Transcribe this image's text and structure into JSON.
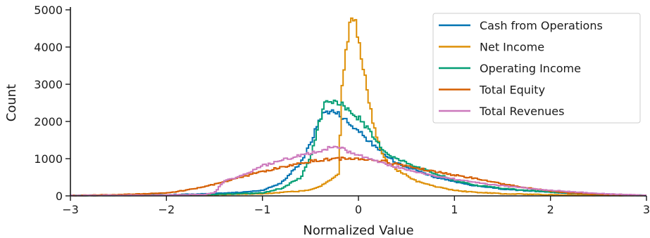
{
  "chart_data": {
    "type": "line",
    "style": "step-histogram",
    "title": "",
    "xlabel": "Normalized Value",
    "ylabel": "Count",
    "xlim": [
      -3,
      3
    ],
    "ylim": [
      0,
      5000
    ],
    "x_ticks": [
      -3,
      -2,
      -1,
      0,
      1,
      2,
      3
    ],
    "x_tick_labels": [
      "−3",
      "−2",
      "−1",
      "0",
      "1",
      "2",
      "3"
    ],
    "y_ticks": [
      0,
      1000,
      2000,
      3000,
      4000,
      5000
    ],
    "y_tick_labels": [
      "0",
      "1000",
      "2000",
      "3000",
      "4000",
      "5000"
    ],
    "grid": false,
    "legend_position": "top-right",
    "series": [
      {
        "name": "Cash from Operations",
        "color": "#0173b2",
        "x": [
          -3.0,
          -2.5,
          -2.0,
          -1.5,
          -1.2,
          -1.0,
          -0.8,
          -0.6,
          -0.5,
          -0.4,
          -0.35,
          -0.3,
          -0.25,
          -0.2,
          -0.15,
          -0.1,
          -0.05,
          0.0,
          0.1,
          0.2,
          0.3,
          0.4,
          0.5,
          0.6,
          0.8,
          1.0,
          1.2,
          1.5,
          2.0,
          2.5,
          3.0
        ],
        "y": [
          10,
          20,
          30,
          60,
          100,
          150,
          350,
          900,
          1400,
          2100,
          2250,
          2300,
          2250,
          2200,
          2100,
          1950,
          1850,
          1750,
          1500,
          1250,
          1050,
          900,
          800,
          700,
          500,
          380,
          280,
          180,
          100,
          40,
          10
        ]
      },
      {
        "name": "Net Income",
        "color": "#de8f05",
        "x": [
          -3.0,
          -2.5,
          -2.0,
          -1.5,
          -1.0,
          -0.8,
          -0.6,
          -0.5,
          -0.4,
          -0.3,
          -0.2,
          -0.18,
          -0.15,
          -0.12,
          -0.1,
          -0.08,
          -0.05,
          -0.03,
          0.0,
          0.05,
          0.1,
          0.15,
          0.2,
          0.25,
          0.3,
          0.4,
          0.5,
          0.6,
          0.8,
          1.0,
          1.2,
          1.5,
          2.0,
          2.5,
          3.0
        ],
        "y": [
          10,
          15,
          20,
          30,
          60,
          90,
          130,
          170,
          260,
          420,
          600,
          2600,
          3400,
          4000,
          4500,
          4850,
          4800,
          4600,
          4200,
          3500,
          2700,
          2000,
          1500,
          1150,
          900,
          700,
          550,
          400,
          250,
          150,
          100,
          60,
          30,
          15,
          10
        ]
      },
      {
        "name": "Operating Income",
        "color": "#029e73",
        "x": [
          -3.0,
          -2.5,
          -2.0,
          -1.5,
          -1.0,
          -0.8,
          -0.6,
          -0.5,
          -0.45,
          -0.4,
          -0.35,
          -0.3,
          -0.25,
          -0.2,
          -0.15,
          -0.1,
          -0.05,
          0.0,
          0.1,
          0.2,
          0.3,
          0.4,
          0.5,
          0.6,
          0.8,
          1.0,
          1.2,
          1.5,
          2.0,
          2.5,
          3.0
        ],
        "y": [
          10,
          15,
          20,
          40,
          80,
          200,
          500,
          1000,
          1500,
          2050,
          2450,
          2550,
          2550,
          2480,
          2400,
          2300,
          2200,
          2100,
          1800,
          1400,
          1150,
          1000,
          900,
          800,
          600,
          420,
          300,
          200,
          100,
          40,
          10
        ]
      },
      {
        "name": "Total Equity",
        "color": "#d55e00",
        "x": [
          -3.0,
          -2.5,
          -2.0,
          -1.8,
          -1.6,
          -1.4,
          -1.2,
          -1.0,
          -0.8,
          -0.6,
          -0.4,
          -0.2,
          0.0,
          0.2,
          0.4,
          0.6,
          0.8,
          1.0,
          1.2,
          1.4,
          1.6,
          1.8,
          2.0,
          2.2,
          2.5,
          3.0
        ],
        "y": [
          10,
          30,
          80,
          150,
          250,
          380,
          520,
          650,
          770,
          880,
          960,
          1000,
          1000,
          950,
          860,
          760,
          650,
          560,
          470,
          370,
          280,
          200,
          130,
          80,
          40,
          10
        ]
      },
      {
        "name": "Total Revenues",
        "color": "#cc78bc",
        "x": [
          -3.0,
          -2.5,
          -2.0,
          -1.6,
          -1.5,
          -1.4,
          -1.2,
          -1.0,
          -0.8,
          -0.6,
          -0.4,
          -0.3,
          -0.2,
          -0.1,
          0.0,
          0.2,
          0.4,
          0.6,
          0.8,
          1.0,
          1.2,
          1.5,
          2.0,
          2.5,
          3.0
        ],
        "y": [
          10,
          15,
          20,
          40,
          80,
          400,
          560,
          800,
          950,
          1100,
          1200,
          1300,
          1280,
          1200,
          1100,
          920,
          780,
          650,
          540,
          450,
          370,
          270,
          150,
          60,
          15
        ]
      }
    ]
  }
}
